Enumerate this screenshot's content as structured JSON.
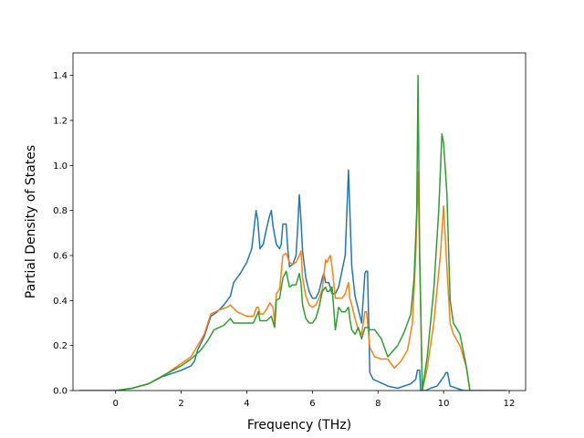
{
  "chart_data": {
    "type": "line",
    "title": "",
    "xlabel": "Frequency (THz)",
    "ylabel": "Partial Density of States",
    "xlim": [
      -1.3,
      12.5
    ],
    "ylim": [
      0,
      1.5
    ],
    "xticks": [
      0,
      2,
      4,
      6,
      8,
      10,
      12
    ],
    "yticks": [
      0.0,
      0.2,
      0.4,
      0.6,
      0.8,
      1.0,
      1.2,
      1.4
    ],
    "xtick_labels": [
      "0",
      "2",
      "4",
      "6",
      "8",
      "10",
      "12"
    ],
    "ytick_labels": [
      "0.0",
      "0.2",
      "0.4",
      "0.6",
      "0.8",
      "1.0",
      "1.2",
      "1.4"
    ],
    "grid": false,
    "legend": null,
    "series": [
      {
        "color": "#1f77b4",
        "x": [
          -1.1,
          0,
          0.5,
          1,
          1.4,
          1.6,
          2.0,
          2.3,
          2.4,
          2.5,
          2.7,
          2.9,
          3.1,
          3.3,
          3.5,
          3.6,
          3.8,
          4.0,
          4.15,
          4.28,
          4.33,
          4.4,
          4.5,
          4.6,
          4.7,
          4.75,
          4.8,
          4.9,
          5.0,
          5.05,
          5.1,
          5.2,
          5.25,
          5.3,
          5.4,
          5.5,
          5.55,
          5.6,
          5.65,
          5.7,
          5.8,
          5.9,
          6.0,
          6.1,
          6.2,
          6.3,
          6.35,
          6.4,
          6.5,
          6.6,
          6.7,
          6.8,
          7.0,
          7.1,
          7.14,
          7.2,
          7.3,
          7.4,
          7.5,
          7.6,
          7.63,
          7.68,
          7.75,
          7.85,
          8.0,
          8.3,
          8.6,
          9.0,
          9.15,
          9.2,
          9.27,
          9.3,
          9.45,
          9.6,
          9.8,
          10.0,
          10.07,
          10.12,
          10.2,
          10.4,
          10.6,
          10.8,
          11.9
        ],
        "y": [
          0.0,
          0.0,
          0.01,
          0.03,
          0.06,
          0.07,
          0.09,
          0.11,
          0.13,
          0.18,
          0.24,
          0.33,
          0.35,
          0.38,
          0.42,
          0.48,
          0.52,
          0.57,
          0.63,
          0.8,
          0.76,
          0.63,
          0.65,
          0.72,
          0.78,
          0.8,
          0.73,
          0.65,
          0.63,
          0.65,
          0.74,
          0.74,
          0.63,
          0.55,
          0.56,
          0.6,
          0.72,
          0.87,
          0.76,
          0.62,
          0.5,
          0.44,
          0.41,
          0.41,
          0.44,
          0.5,
          0.52,
          0.48,
          0.48,
          0.43,
          0.43,
          0.46,
          0.6,
          0.98,
          0.8,
          0.55,
          0.42,
          0.36,
          0.3,
          0.52,
          0.53,
          0.53,
          0.08,
          0.05,
          0.04,
          0.02,
          0.01,
          0.03,
          0.05,
          0.09,
          0.09,
          0.0,
          0.0,
          0.01,
          0.02,
          0.06,
          0.08,
          0.08,
          0.02,
          0.01,
          0.0,
          0.0,
          0.0
        ]
      },
      {
        "color": "#ff7f0e",
        "x": [
          0,
          0.5,
          1,
          1.5,
          2.0,
          2.3,
          2.5,
          2.7,
          2.9,
          3.2,
          3.4,
          3.5,
          3.7,
          4.0,
          4.2,
          4.3,
          4.35,
          4.4,
          4.5,
          4.6,
          4.7,
          4.8,
          4.85,
          4.9,
          5.0,
          5.1,
          5.2,
          5.3,
          5.4,
          5.5,
          5.6,
          5.65,
          5.7,
          5.8,
          5.9,
          6.0,
          6.1,
          6.2,
          6.3,
          6.4,
          6.45,
          6.5,
          6.55,
          6.6,
          6.7,
          6.8,
          6.9,
          7.0,
          7.1,
          7.14,
          7.2,
          7.3,
          7.4,
          7.5,
          7.6,
          7.65,
          7.75,
          7.9,
          8.1,
          8.3,
          8.5,
          8.7,
          8.9,
          9.05,
          9.15,
          9.22,
          9.27,
          9.35,
          9.5,
          9.7,
          9.9,
          10.0,
          10.1,
          10.2,
          10.3,
          10.5,
          10.7,
          10.8
        ],
        "y": [
          0.0,
          0.01,
          0.03,
          0.07,
          0.12,
          0.15,
          0.2,
          0.25,
          0.34,
          0.36,
          0.37,
          0.38,
          0.35,
          0.33,
          0.33,
          0.37,
          0.37,
          0.34,
          0.34,
          0.36,
          0.39,
          0.37,
          0.3,
          0.43,
          0.45,
          0.6,
          0.61,
          0.57,
          0.56,
          0.57,
          0.6,
          0.62,
          0.5,
          0.42,
          0.38,
          0.37,
          0.38,
          0.41,
          0.45,
          0.58,
          0.57,
          0.59,
          0.6,
          0.55,
          0.41,
          0.41,
          0.41,
          0.43,
          0.48,
          0.41,
          0.38,
          0.32,
          0.27,
          0.25,
          0.35,
          0.35,
          0.19,
          0.15,
          0.14,
          0.14,
          0.1,
          0.13,
          0.18,
          0.3,
          0.6,
          0.97,
          0.6,
          0.0,
          0.1,
          0.3,
          0.6,
          0.82,
          0.55,
          0.3,
          0.25,
          0.2,
          0.1,
          0.0
        ]
      },
      {
        "color": "#2ca02c",
        "x": [
          0,
          0.5,
          1,
          1.5,
          2.0,
          2.3,
          2.6,
          2.8,
          3.0,
          3.3,
          3.5,
          3.6,
          3.9,
          4.2,
          4.35,
          4.4,
          4.6,
          4.75,
          4.85,
          4.9,
          5.0,
          5.1,
          5.2,
          5.3,
          5.4,
          5.5,
          5.6,
          5.65,
          5.7,
          5.8,
          5.9,
          6.0,
          6.1,
          6.2,
          6.3,
          6.4,
          6.45,
          6.5,
          6.6,
          6.7,
          6.8,
          6.9,
          7.0,
          7.1,
          7.15,
          7.2,
          7.3,
          7.4,
          7.5,
          7.6,
          7.7,
          7.75,
          7.9,
          8.1,
          8.3,
          8.6,
          8.8,
          9.0,
          9.1,
          9.18,
          9.22,
          9.27,
          9.35,
          9.5,
          9.7,
          9.85,
          9.95,
          10.0,
          10.1,
          10.2,
          10.3,
          10.5,
          10.7,
          10.8
        ],
        "y": [
          0.0,
          0.01,
          0.03,
          0.07,
          0.11,
          0.14,
          0.18,
          0.22,
          0.27,
          0.29,
          0.32,
          0.3,
          0.3,
          0.3,
          0.35,
          0.31,
          0.31,
          0.33,
          0.28,
          0.4,
          0.41,
          0.5,
          0.53,
          0.46,
          0.47,
          0.47,
          0.52,
          0.48,
          0.38,
          0.32,
          0.3,
          0.3,
          0.32,
          0.37,
          0.44,
          0.46,
          0.44,
          0.44,
          0.46,
          0.27,
          0.37,
          0.35,
          0.35,
          0.37,
          0.31,
          0.27,
          0.25,
          0.28,
          0.23,
          0.28,
          0.28,
          0.27,
          0.27,
          0.23,
          0.15,
          0.2,
          0.26,
          0.34,
          0.5,
          0.8,
          1.4,
          0.6,
          0.0,
          0.15,
          0.45,
          0.8,
          1.14,
          1.1,
          0.88,
          0.4,
          0.3,
          0.25,
          0.1,
          0.0
        ]
      }
    ]
  }
}
